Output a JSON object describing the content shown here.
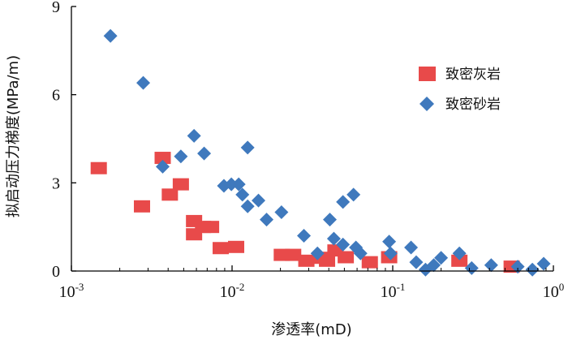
{
  "chart_data": {
    "type": "scatter",
    "xscale": "log",
    "xlim": [
      0.001,
      1
    ],
    "ylim": [
      0,
      9
    ],
    "xlabel": "渗透率(mD)",
    "ylabel": "拟启动压力梯度(MPa/m)",
    "xticks": [
      {
        "value": 0.001,
        "base": "10",
        "exp": "-3"
      },
      {
        "value": 0.01,
        "base": "10",
        "exp": "-2"
      },
      {
        "value": 0.1,
        "base": "10",
        "exp": "-1"
      },
      {
        "value": 1,
        "base": "10",
        "exp": "0"
      }
    ],
    "yticks": [
      {
        "value": 0,
        "label": "0"
      },
      {
        "value": 3,
        "label": "3"
      },
      {
        "value": 6,
        "label": "6"
      },
      {
        "value": 9,
        "label": "9"
      }
    ],
    "grid": false,
    "legend_position": "top-right",
    "series": [
      {
        "name": "致密灰岩",
        "marker": "square",
        "color": "#e84a4a",
        "points": [
          [
            0.00148,
            3.5
          ],
          [
            0.00275,
            2.2
          ],
          [
            0.0037,
            3.85
          ],
          [
            0.0041,
            2.6
          ],
          [
            0.0048,
            2.95
          ],
          [
            0.0058,
            1.7
          ],
          [
            0.0058,
            1.25
          ],
          [
            0.0066,
            1.5
          ],
          [
            0.0074,
            1.5
          ],
          [
            0.0085,
            0.78
          ],
          [
            0.0106,
            0.82
          ],
          [
            0.0204,
            0.55
          ],
          [
            0.024,
            0.55
          ],
          [
            0.029,
            0.35
          ],
          [
            0.036,
            0.45
          ],
          [
            0.039,
            0.35
          ],
          [
            0.044,
            0.7
          ],
          [
            0.051,
            0.47
          ],
          [
            0.072,
            0.3
          ],
          [
            0.095,
            0.47
          ],
          [
            0.26,
            0.35
          ],
          [
            0.55,
            0.15
          ]
        ]
      },
      {
        "name": "致密砂岩",
        "marker": "diamond",
        "color": "#3f79bd",
        "points": [
          [
            0.00175,
            8.0
          ],
          [
            0.0028,
            6.4
          ],
          [
            0.0037,
            3.55
          ],
          [
            0.0048,
            3.9
          ],
          [
            0.0058,
            4.6
          ],
          [
            0.0067,
            4.0
          ],
          [
            0.0089,
            2.9
          ],
          [
            0.0099,
            2.95
          ],
          [
            0.011,
            2.95
          ],
          [
            0.0116,
            2.6
          ],
          [
            0.0125,
            4.2
          ],
          [
            0.0125,
            2.2
          ],
          [
            0.0146,
            2.4
          ],
          [
            0.0164,
            1.75
          ],
          [
            0.0203,
            2.0
          ],
          [
            0.028,
            1.2
          ],
          [
            0.034,
            0.6
          ],
          [
            0.0406,
            1.75
          ],
          [
            0.043,
            1.1
          ],
          [
            0.049,
            0.9
          ],
          [
            0.049,
            2.35
          ],
          [
            0.057,
            2.6
          ],
          [
            0.059,
            0.8
          ],
          [
            0.063,
            0.6
          ],
          [
            0.095,
            1.0
          ],
          [
            0.097,
            0.6
          ],
          [
            0.13,
            0.8
          ],
          [
            0.14,
            0.3
          ],
          [
            0.16,
            0.05
          ],
          [
            0.18,
            0.2
          ],
          [
            0.2,
            0.45
          ],
          [
            0.26,
            0.6
          ],
          [
            0.31,
            0.1
          ],
          [
            0.41,
            0.2
          ],
          [
            0.6,
            0.15
          ],
          [
            0.74,
            0.05
          ],
          [
            0.87,
            0.25
          ]
        ]
      }
    ]
  }
}
